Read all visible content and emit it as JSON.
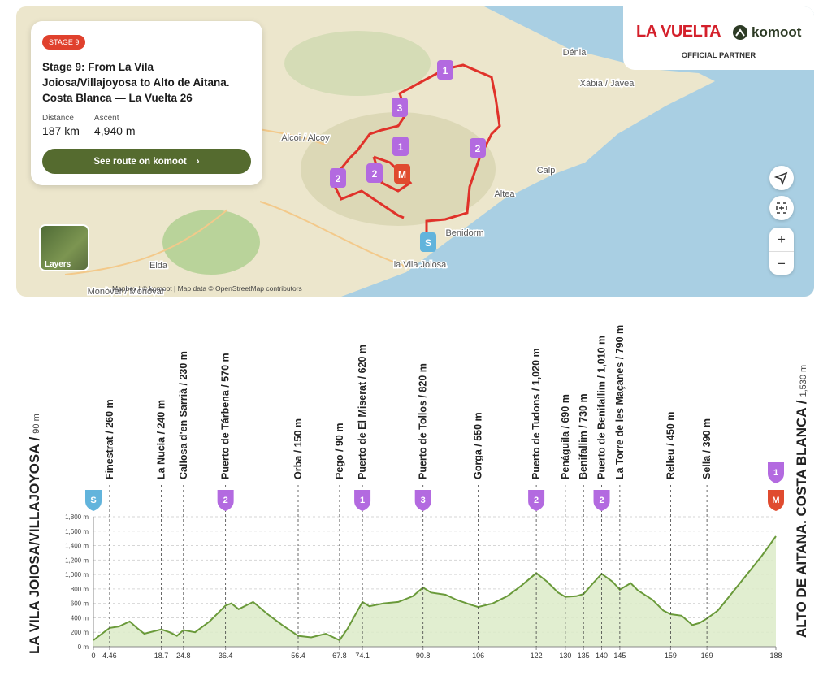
{
  "map": {
    "card": {
      "badge": "STAGE 9",
      "title": "Stage 9: From La Vila Joiosa/Villajoyosa to Alto de Aitana. Costa Blanca — La Vuelta 26",
      "stats": [
        {
          "label": "Distance",
          "value": "187 km"
        },
        {
          "label": "Ascent",
          "value": "4,940 m"
        }
      ],
      "button": "See route on komoot"
    },
    "partner": {
      "brand": "LA VUELTA",
      "komoot": "komoot",
      "note": "OFFICIAL PARTNER"
    },
    "places": [
      "Dénia",
      "Xàbia / Jávea",
      "Alcoi / Alcoy",
      "Calp",
      "Altea",
      "Benidorm",
      "la Vila Joiosa",
      "Elda",
      "Monòver / Monóvar"
    ],
    "route_markers": [
      "1",
      "3",
      "1",
      "2",
      "2",
      "2",
      "M",
      "S"
    ],
    "layers": "Layers",
    "zoom_in": "+",
    "zoom_out": "−",
    "attribution": "Mapbox | © komoot | Map data © OpenStreetMap contributors"
  },
  "chart_data": {
    "type": "area",
    "start": {
      "name": "LA VILA JOIOSA/VILLAJOYOSA /",
      "elevation": "90 m"
    },
    "finish": {
      "name": "ALTO DE AITANA. COSTA BLANCA /",
      "elevation": "1,530 m"
    },
    "x": [
      0,
      4.46,
      7,
      10,
      12,
      14,
      18.7,
      21,
      23,
      24.8,
      28,
      32,
      36.4,
      38,
      40,
      44,
      48,
      52,
      56.4,
      60,
      64,
      67.8,
      70,
      74.1,
      76,
      80,
      84,
      88,
      90.8,
      93,
      97,
      100,
      104,
      106,
      110,
      114,
      118,
      122,
      125,
      128,
      130,
      133,
      135,
      138,
      140,
      143,
      145,
      148,
      150,
      154,
      157,
      159,
      162,
      165,
      167,
      169,
      172,
      176,
      180,
      184,
      188
    ],
    "values": [
      90,
      260,
      280,
      350,
      260,
      180,
      240,
      200,
      150,
      230,
      200,
      350,
      570,
      600,
      520,
      620,
      450,
      300,
      150,
      130,
      180,
      90,
      250,
      620,
      560,
      600,
      620,
      700,
      820,
      750,
      720,
      650,
      580,
      550,
      600,
      700,
      850,
      1020,
      900,
      750,
      690,
      700,
      730,
      900,
      1010,
      900,
      790,
      880,
      780,
      650,
      500,
      450,
      430,
      300,
      330,
      390,
      500,
      750,
      1000,
      1250,
      1530
    ],
    "color": "#6a9a3a",
    "xlim": [
      0,
      188
    ],
    "ylim": [
      0,
      1800
    ],
    "xticks": [
      0,
      4.46,
      18.7,
      24.8,
      36.4,
      56.4,
      67.8,
      74.1,
      90.8,
      106,
      122,
      130,
      135,
      140,
      145,
      159,
      169,
      188
    ],
    "yticks": [
      {
        "value": 0,
        "label": "0 m"
      },
      {
        "value": 200,
        "label": "200 m"
      },
      {
        "value": 400,
        "label": "400 m"
      },
      {
        "value": 600,
        "label": "600 m"
      },
      {
        "value": 800,
        "label": "800 m"
      },
      {
        "value": 1000,
        "label": "1,000 m"
      },
      {
        "value": 1200,
        "label": "1,200 m"
      },
      {
        "value": 1400,
        "label": "1,400 m"
      },
      {
        "value": 1600,
        "label": "1,600 m"
      },
      {
        "value": 1800,
        "label": "1,800 m"
      }
    ],
    "grid": true,
    "waypoints": [
      {
        "label": "Finestrat / 260 m",
        "x": 4.46
      },
      {
        "label": "La Nucia / 240 m",
        "x": 18.7
      },
      {
        "label": "Callosa d'en Sarrià / 230 m",
        "x": 24.8
      },
      {
        "label": "Puerto de Tárbena / 570 m",
        "x": 36.4
      },
      {
        "label": "Orba / 150 m",
        "x": 56.4
      },
      {
        "label": "Pego / 90 m",
        "x": 67.8
      },
      {
        "label": "Puerto de El Miserat / 620 m",
        "x": 74.1
      },
      {
        "label": "Puerto de Tollos / 820 m",
        "x": 90.8
      },
      {
        "label": "Gorga / 550 m",
        "x": 106
      },
      {
        "label": "Puerto de Tudons / 1,020 m",
        "x": 122
      },
      {
        "label": "Penáguila / 690 m",
        "x": 130
      },
      {
        "label": "Benifallim / 730 m",
        "x": 135
      },
      {
        "label": "Puerto de Benifallim / 1,010 m",
        "x": 140
      },
      {
        "label": "La Torre de les Maçanes / 790 m",
        "x": 145
      },
      {
        "label": "Relleu / 450 m",
        "x": 159
      },
      {
        "label": "Sella / 390 m",
        "x": 169
      }
    ],
    "markers": [
      {
        "x": 0,
        "label": "S",
        "color": "#62b4dc"
      },
      {
        "x": 36.4,
        "label": "2",
        "color": "#b36ae0"
      },
      {
        "x": 74.1,
        "label": "1",
        "color": "#b36ae0"
      },
      {
        "x": 90.8,
        "label": "3",
        "color": "#b36ae0"
      },
      {
        "x": 122,
        "label": "2",
        "color": "#b36ae0"
      },
      {
        "x": 140,
        "label": "2",
        "color": "#b36ae0"
      },
      {
        "x": 188,
        "label": "M",
        "color": "#e04b2f"
      },
      {
        "x": 188,
        "label": "1",
        "color": "#b36ae0"
      }
    ]
  }
}
